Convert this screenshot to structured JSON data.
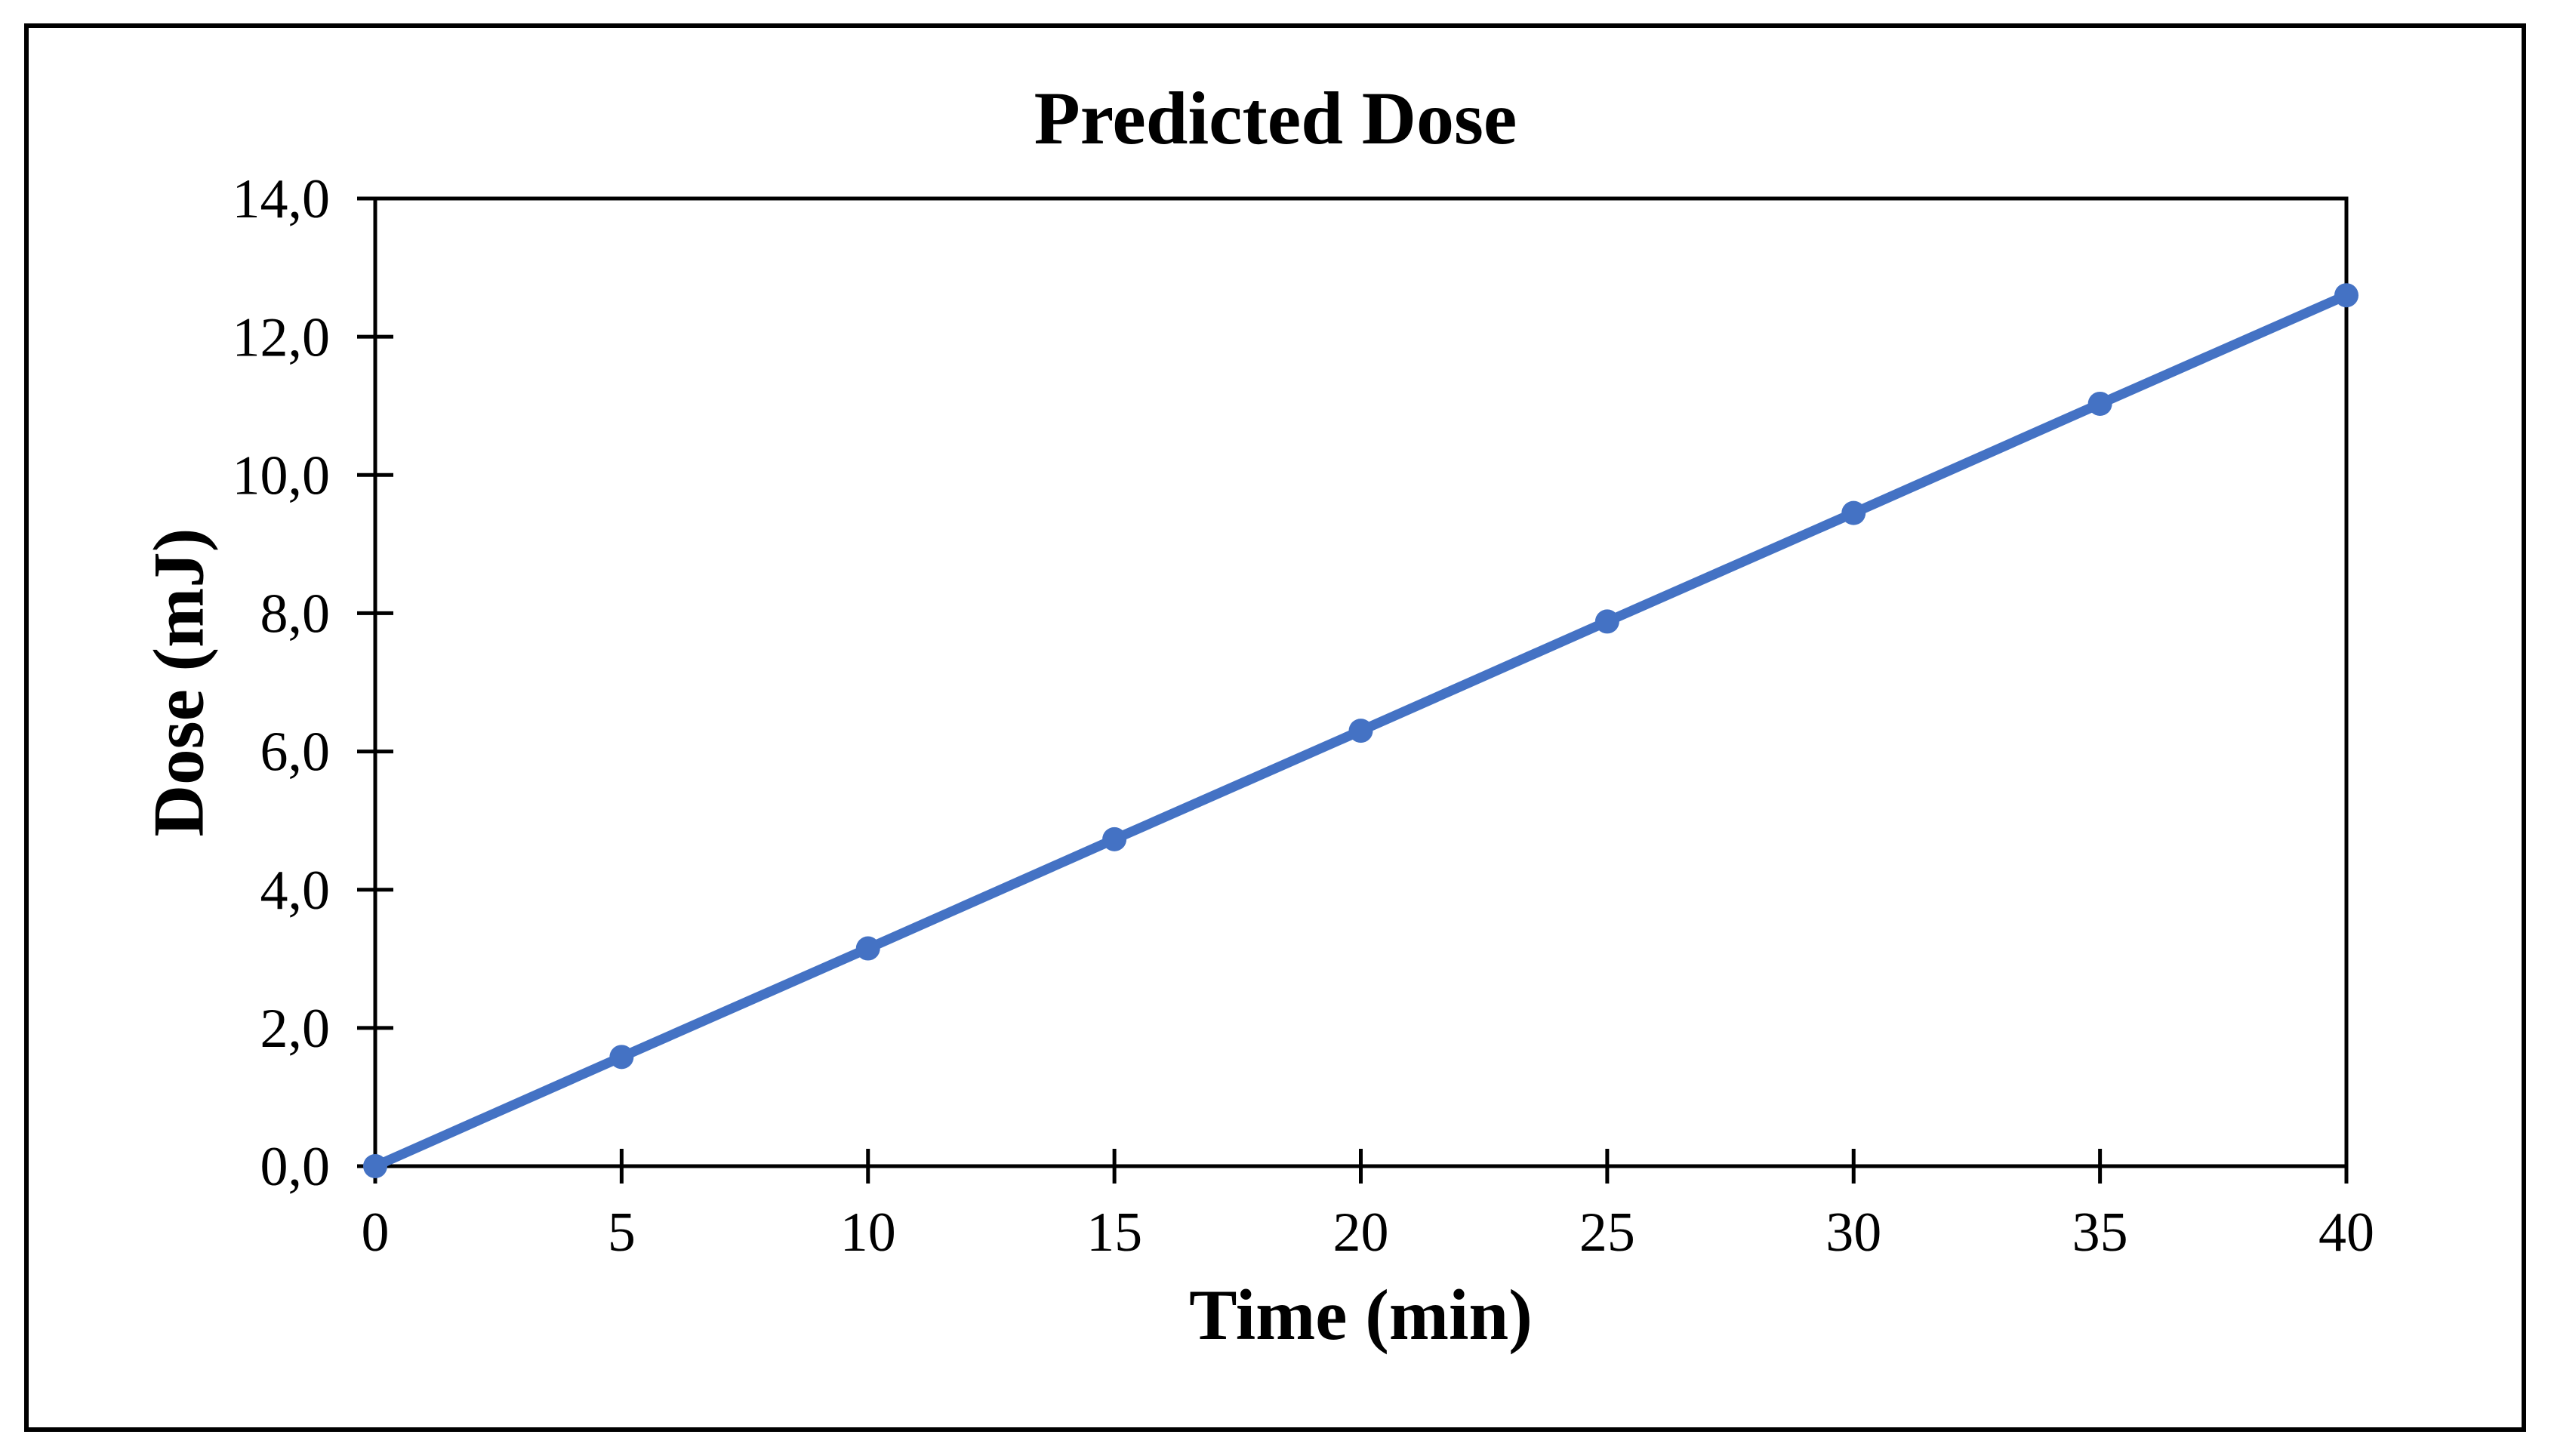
{
  "page": {
    "background_color": "#ffffff",
    "border_color": "#000000"
  },
  "chart_data": {
    "type": "line",
    "title": "Predicted Dose",
    "xlabel": "Time (min)",
    "ylabel": "Dose (mJ)",
    "x": [
      0,
      5,
      10,
      15,
      20,
      25,
      30,
      35,
      40
    ],
    "values": [
      0.0,
      1.58,
      3.15,
      4.73,
      6.3,
      7.88,
      9.45,
      11.03,
      12.6
    ],
    "x_tick_labels": [
      "0",
      "5",
      "10",
      "15",
      "20",
      "25",
      "30",
      "35",
      "40"
    ],
    "y_tick_values": [
      0,
      2,
      4,
      6,
      8,
      10,
      12,
      14
    ],
    "y_tick_labels": [
      "0,0",
      "2,0",
      "4,0",
      "6,0",
      "8,0",
      "10,0",
      "12,0",
      "14,0"
    ],
    "xlim": [
      0,
      40
    ],
    "ylim": [
      0,
      14
    ],
    "grid": false,
    "legend": null,
    "decimal_separator": ",",
    "series_color": "#4472C4",
    "axis_color": "#000000",
    "marker": "circle",
    "tick_style": "cross"
  }
}
